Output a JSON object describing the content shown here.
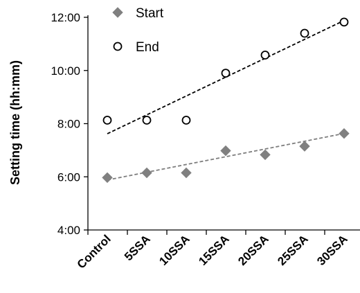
{
  "chart_data": {
    "type": "scatter",
    "ylabel": "Setting time (hh:mm)",
    "categories": [
      "Control",
      "5SSA",
      "10SSA",
      "15SSA",
      "20SSA",
      "25SSA",
      "30SSA"
    ],
    "yticks": [
      "4:00",
      "6:00",
      "8:00",
      "10:00",
      "12:00"
    ],
    "ylim_hours": [
      4,
      12
    ],
    "series": [
      {
        "name": "Start",
        "marker": "filled-diamond",
        "color": "#808080",
        "values_hours": [
          5.97,
          6.15,
          6.15,
          6.98,
          6.83,
          7.15,
          7.63
        ],
        "trendline": {
          "style": "dashed",
          "color": "#7f7f7f",
          "start_hours": 5.88,
          "end_hours": 7.63
        }
      },
      {
        "name": "End",
        "marker": "open-circle",
        "color": "#000000",
        "values_hours": [
          8.13,
          8.13,
          8.13,
          9.9,
          10.58,
          11.4,
          11.82
        ],
        "trendline": {
          "style": "dashed",
          "color": "#000000",
          "start_hours": 7.62,
          "end_hours": 11.88
        }
      }
    ],
    "legend_position": "top-left",
    "grid": false
  }
}
